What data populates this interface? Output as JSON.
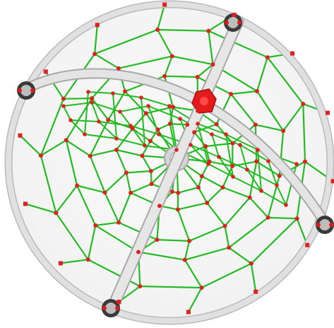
{
  "scene": {
    "subject": "spider-web-climbing-net",
    "colors": {
      "background": "#ffffff",
      "frame_ring": "#dcdcdc",
      "frame_ring_edge": "#b9b9b9",
      "net_rope": "#22bb22",
      "knot": "#e02020",
      "clamp": "#3a3a3a",
      "hub_connector": "#e81818",
      "center_hub": "#d4d4d4"
    }
  }
}
